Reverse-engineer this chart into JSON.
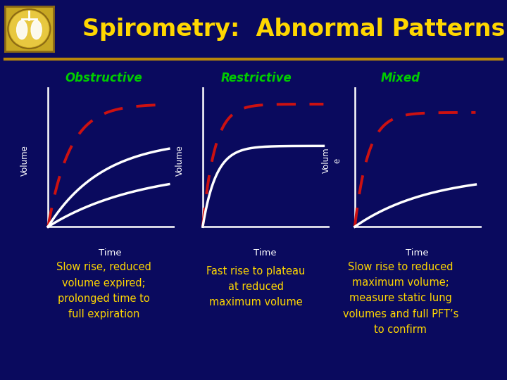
{
  "title": "Spirometry:  Abnormal Patterns",
  "title_color": "#FFD700",
  "background_color": "#0a0a5e",
  "title_fontsize": 24,
  "header_line_color": "#B8860B",
  "categories": [
    "Obstructive",
    "Restrictive",
    "Mixed"
  ],
  "category_color": "#00CC00",
  "axis_line_color": "white",
  "normal_line_color": "white",
  "dashed_line_color": "#CC1111",
  "xlabel": "Time",
  "ylabels": [
    "Volume",
    "Volume",
    "Volum\ne"
  ],
  "descriptions": [
    "Slow rise, reduced\nvolume expired;\nprolonged time to\nfull expiration",
    "Fast rise to plateau\nat reduced\nmaximum volume",
    "Slow rise to reduced\nmaximum volume;\nmeasure static lung\nvolumes and full PFT’s\nto confirm"
  ],
  "description_color": "#FFD700",
  "description_fontsize": 10.5,
  "logo_bg": "#C8A822",
  "logo_border": "#8B6914"
}
